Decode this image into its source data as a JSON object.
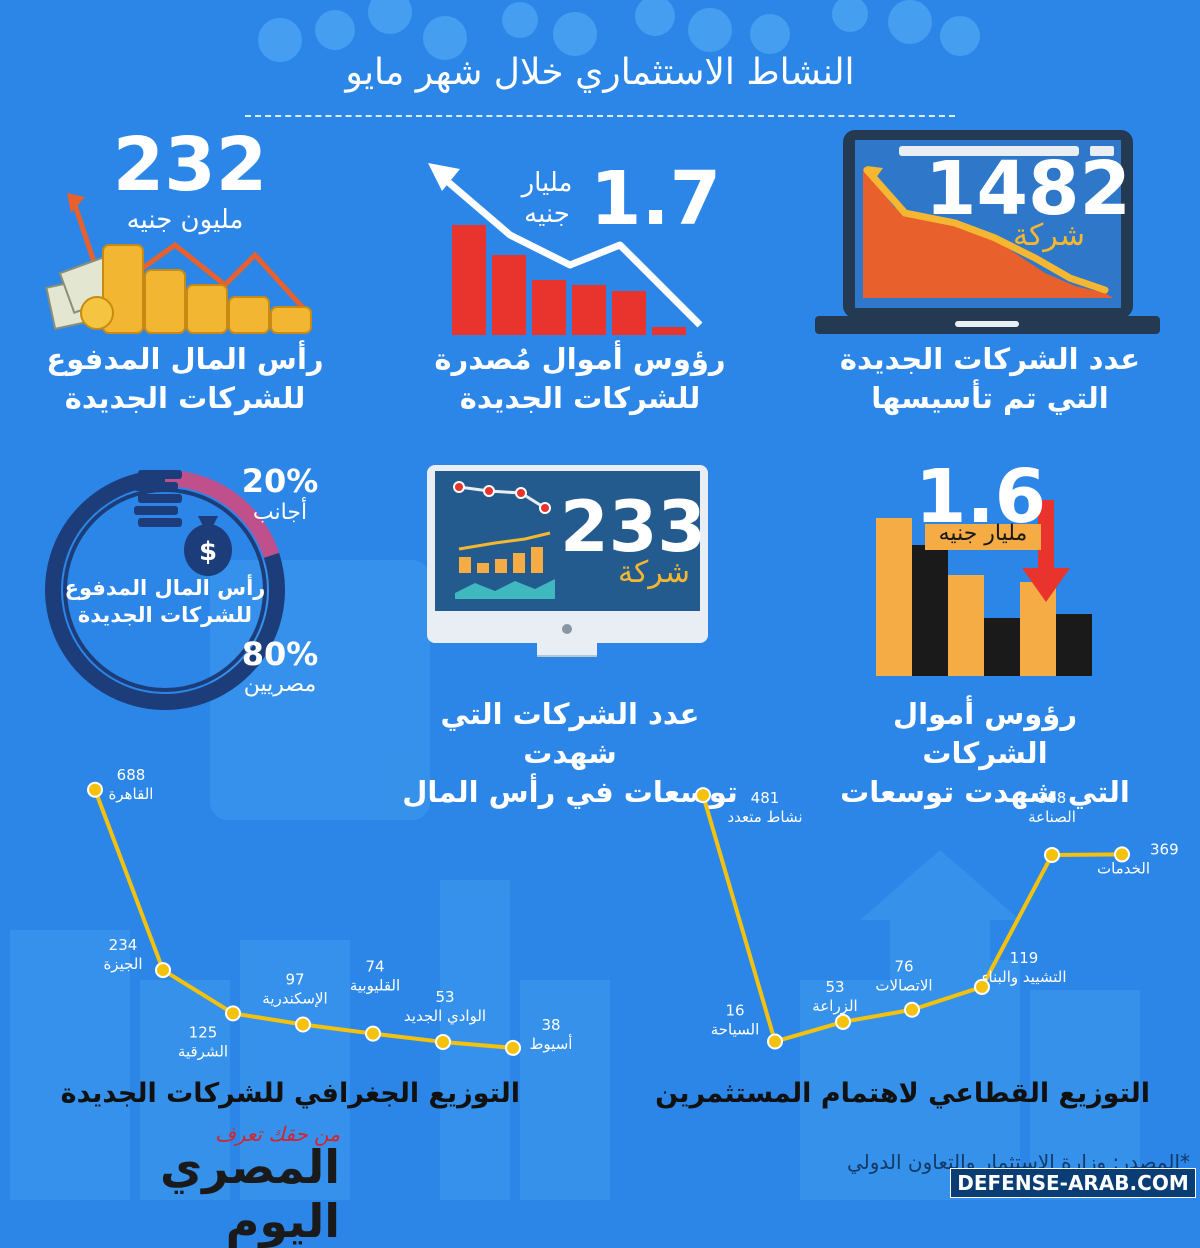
{
  "title": "النشاط الاستثماري خلال شهر مايو",
  "colors": {
    "background": "#2b86e8",
    "accent_yellow": "#f5b731",
    "accent_red": "#e8342c",
    "dark": "#1a1a1a",
    "line": "#f4c20d"
  },
  "stat_new_companies": {
    "value": "1482",
    "unit": "شركة",
    "label_line1": "عدد الشركات الجديدة",
    "label_line2": "التي تم تأسيسها",
    "icon": "laptop-chart-icon"
  },
  "stat_issued_capital": {
    "value": "1.7",
    "unit_line1": "مليار",
    "unit_line2": "جنيه",
    "label_line1": "رؤوس أموال مُصدرة",
    "label_line2": "للشركات الجديدة",
    "icon": "falling-bars-icon"
  },
  "stat_paid_capital": {
    "value": "232",
    "unit": "مليون جنيه",
    "label_line1": "رأس المال المدفوع",
    "label_line2": "للشركات الجديدة",
    "icon": "coin-stacks-icon"
  },
  "stat_expansion_capital": {
    "value": "1.6",
    "unit": "مليار جنيه",
    "label_line1": "رؤوس أموال الشركات",
    "label_line2": "التي شهدت توسعات",
    "icon": "bar-chart-down-arrow-icon"
  },
  "stat_expansion_companies": {
    "value": "233",
    "unit": "شركة",
    "label_line1": "عدد الشركات التي شهدت",
    "label_line2": "توسعات في رأس المال",
    "icon": "monitor-chart-icon"
  },
  "paid_capital_split": {
    "center_line1": "رأس المال المدفوع",
    "center_line2": "للشركات الجديدة",
    "foreign_pct": "20%",
    "foreign_label": "أجانب",
    "egyptian_pct": "80%",
    "egyptian_label": "مصريين"
  },
  "chart_data": [
    {
      "type": "line",
      "title": "التوزيع الجغرافي للشركات الجديدة",
      "categories": [
        "القاهرة",
        "الجيزة",
        "الشرقية",
        "الإسكندرية",
        "القليوبية",
        "الوادي الجديد",
        "أسيوط"
      ],
      "values": [
        688,
        234,
        125,
        97,
        74,
        53,
        38
      ]
    },
    {
      "type": "line",
      "title": "التوزيع القطاعي لاهتمام المستثمرين",
      "categories": [
        "نشاط متعدد",
        "السياحة",
        "الزراعة",
        "الاتصالات",
        "التشييد والبناء",
        "الصناعة",
        "الخدمات"
      ],
      "values": [
        481,
        16,
        53,
        76,
        119,
        368,
        369
      ]
    },
    {
      "type": "pie",
      "title": "",
      "categories": [
        "أجانب",
        "مصريين"
      ],
      "values": [
        20,
        80
      ]
    }
  ],
  "source": "*المصدر: وزارة الاستثمار والتعاون الدولي",
  "watermark": "DEFENSE-ARAB.COM",
  "logo": {
    "name": "المصري اليوم",
    "tagline": "من حقك تعرف"
  }
}
